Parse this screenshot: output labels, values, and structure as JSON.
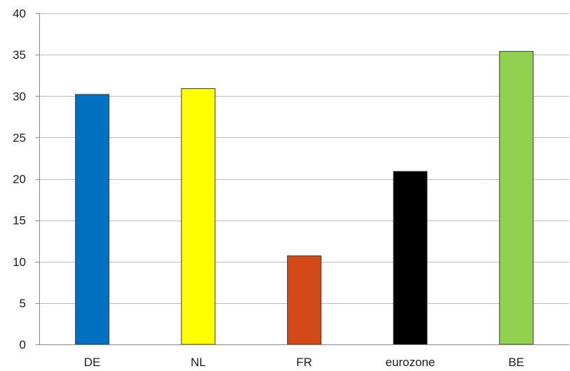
{
  "chart_data": {
    "type": "bar",
    "categories": [
      "DE",
      "NL",
      "FR",
      "eurozone",
      "BE"
    ],
    "values": [
      30.2,
      30.9,
      10.7,
      20.9,
      35.4
    ],
    "bar_colors": [
      "#0070c0",
      "#ffff00",
      "#d24a18",
      "#000000",
      "#92d050"
    ],
    "bar_outline_color": "#3a3a3a",
    "ylim": [
      0,
      40
    ],
    "yticks": [
      0,
      5,
      10,
      15,
      20,
      25,
      30,
      35,
      40
    ],
    "grid": true,
    "grid_color": "#bfbfbf",
    "axis_color": "#888888",
    "title": "",
    "xlabel": "",
    "ylabel": ""
  }
}
